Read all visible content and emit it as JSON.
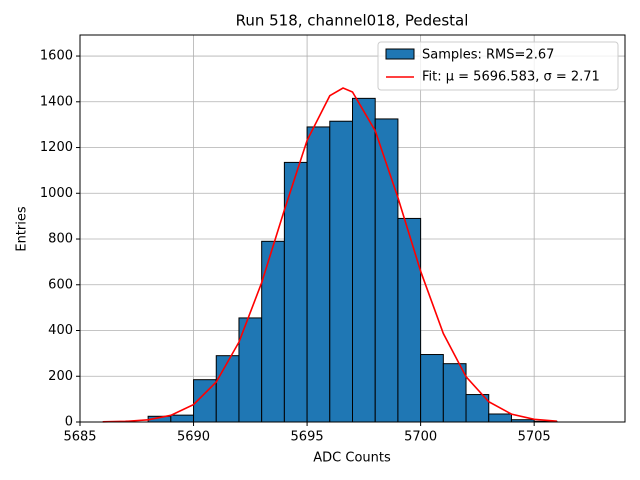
{
  "chart_data": {
    "type": "histogram",
    "title": "Run 518, channel018, Pedestal",
    "x_label": "ADC Counts",
    "y_label": "Entries",
    "bins": [
      5688,
      5689,
      5690,
      5691,
      5692,
      5693,
      5694,
      5695,
      5696,
      5697,
      5698,
      5699,
      5700,
      5701,
      5702,
      5703,
      5704,
      5705,
      5706
    ],
    "counts": [
      25,
      30,
      185,
      290,
      455,
      790,
      1135,
      1290,
      1315,
      1415,
      1325,
      890,
      295,
      255,
      120,
      35,
      10,
      3
    ],
    "name": "Samples: RMS=2.67",
    "color": "#1f77b4",
    "edgecolor": "#000000",
    "fit": {
      "name": "Fit: μ = 5696.583, σ = 2.71",
      "color": "#ff0000",
      "x": [
        5686,
        5687,
        5688,
        5689,
        5690,
        5691,
        5692,
        5693,
        5694,
        5695,
        5696,
        5696.583,
        5697,
        5698,
        5699,
        5700,
        5701,
        5702,
        5703,
        5704,
        5705,
        5706
      ],
      "values": [
        0.7,
        2.8,
        9.7,
        29.1,
        76.3,
        174.9,
        349.4,
        609.3,
        926.9,
        1231.1,
        1426.6,
        1460,
        1442.9,
        1273.4,
        981.0,
        659.3,
        386.9,
        198.0,
        88.5,
        34.5,
        11.7,
        3.5
      ]
    },
    "xlim": [
      5685,
      5709
    ],
    "ylim": [
      0,
      1692
    ],
    "xticks": [
      5685,
      5690,
      5695,
      5700,
      5705
    ],
    "yticks": [
      0,
      200,
      400,
      600,
      800,
      1000,
      1200,
      1400,
      1600
    ],
    "grid": true,
    "legend": "upper right"
  }
}
